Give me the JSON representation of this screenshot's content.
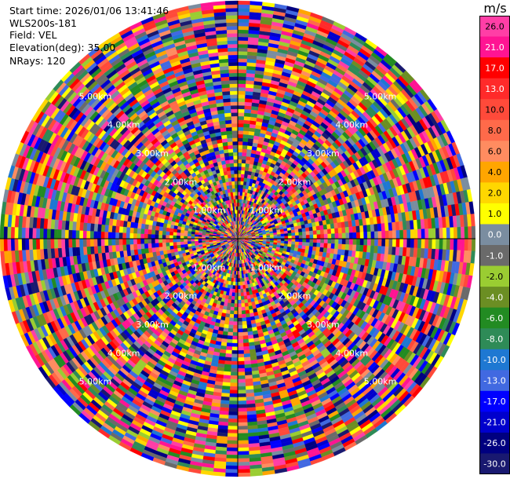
{
  "info": {
    "start_time": "Start time: 2026/01/06 13:41:46",
    "station": "WLS200s-181",
    "field": "Field: VEL",
    "elevation": "Elevation(deg): 35.00",
    "nrays": "NRays: 120"
  },
  "colorbar": {
    "unit": "m/s",
    "labels": [
      "26.0",
      "21.0",
      "17.0",
      "13.0",
      "10.0",
      "8.0",
      "6.0",
      "4.0",
      "2.0",
      "1.0",
      "0.0",
      "-1.0",
      "-2.0",
      "-4.0",
      "-6.0",
      "-8.0",
      "-10.0",
      "-13.0",
      "-17.0",
      "-21.0",
      "-26.0",
      "-30.0"
    ],
    "colors": [
      "#ff3ea6",
      "#ff1493",
      "#ff0000",
      "#ff2a2a",
      "#ff4a3a",
      "#ff6a4a",
      "#ff8c60",
      "#ffa500",
      "#ffd700",
      "#ffff00",
      "#7a8da0",
      "#6a6a6a",
      "#9acd32",
      "#6b8e23",
      "#228b22",
      "#2e8b57",
      "#1e78d2",
      "#4169e1",
      "#0000ff",
      "#0000cd",
      "#000080",
      "#191970"
    ]
  },
  "chart_data": {
    "type": "heatmap",
    "projection": "polar PPI",
    "field": "VEL",
    "units": "m/s",
    "nrays": 120,
    "elevation_deg": 35.0,
    "range_rings_km": [
      1.0,
      2.0,
      3.0,
      4.0,
      5.0
    ],
    "ring_labels": [
      "1.00km",
      "2.00km",
      "3.00km",
      "4.00km",
      "5.00km"
    ],
    "max_range_km": 5.9,
    "color_scale_min": -30.0,
    "color_scale_max": 26.0
  }
}
